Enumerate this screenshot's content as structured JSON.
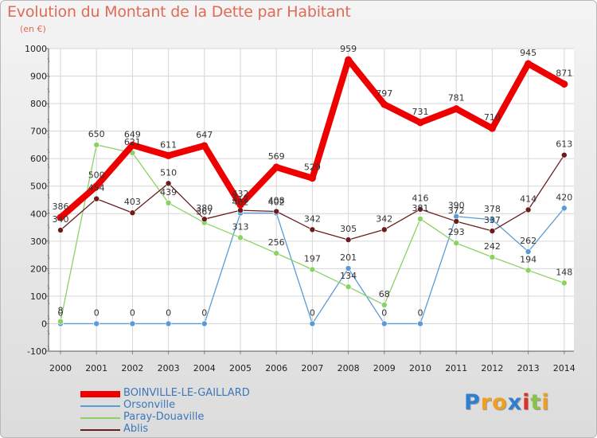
{
  "title": "Evolution du Montant de la Dette par Habitant",
  "unit": "(en €)",
  "logo": "Proxiti",
  "chart_data": {
    "type": "line",
    "x": [
      "2000",
      "2001",
      "2002",
      "2003",
      "2004",
      "2005",
      "2006",
      "2007",
      "2008",
      "2009",
      "2010",
      "2011",
      "2012",
      "2013",
      "2014"
    ],
    "ylim": [
      -100,
      1000
    ],
    "yticks": [
      -100,
      0,
      100,
      200,
      300,
      400,
      500,
      600,
      700,
      800,
      900,
      1000
    ],
    "series": [
      {
        "name": "BOINVILLE-LE-GAILLARD",
        "color": "#ee0000",
        "values": [
          386,
          500,
          649,
          611,
          647,
          432,
          569,
          529,
          959,
          797,
          731,
          781,
          710,
          945,
          871
        ]
      },
      {
        "name": "Orsonville",
        "color": "#5b9bd5",
        "values": [
          0,
          0,
          0,
          0,
          0,
          402,
          402,
          0,
          201,
          0,
          0,
          390,
          378,
          262,
          420
        ]
      },
      {
        "name": "Paray-Douaville",
        "color": "#8bd164",
        "values": [
          8,
          650,
          621,
          439,
          367,
          313,
          256,
          197,
          134,
          68,
          381,
          293,
          242,
          194,
          148
        ]
      },
      {
        "name": "Ablis",
        "color": "#6b1d1d",
        "values": [
          340,
          454,
          403,
          510,
          380,
          412,
          408,
          342,
          305,
          342,
          416,
          372,
          337,
          414,
          613
        ]
      }
    ]
  }
}
